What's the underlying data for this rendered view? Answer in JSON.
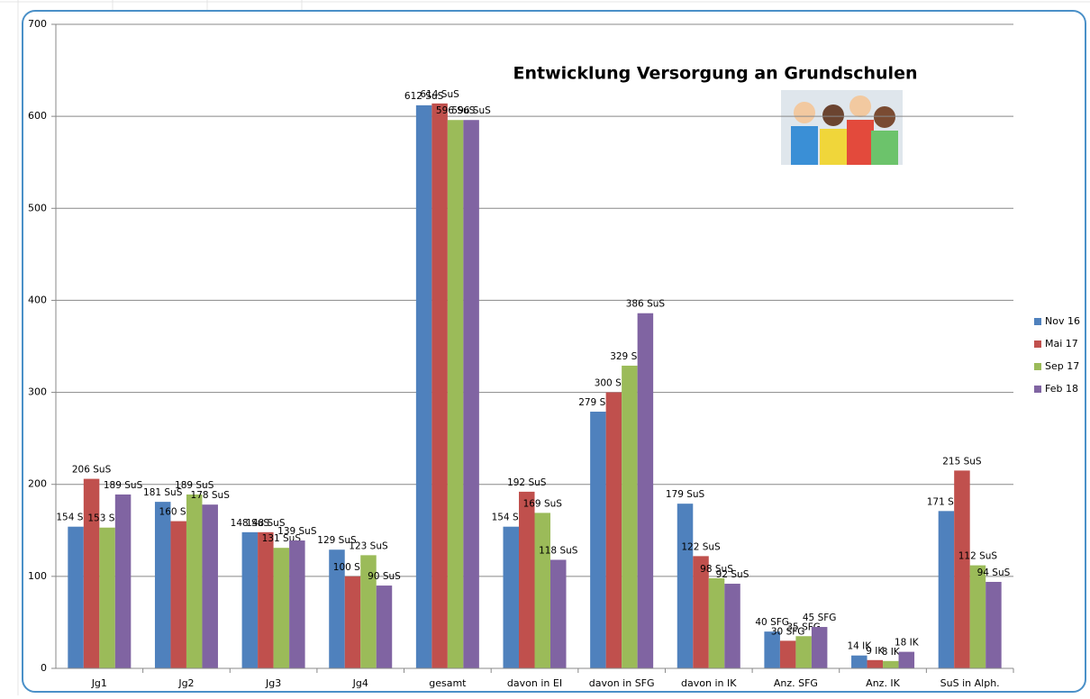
{
  "chart_data": {
    "type": "bar",
    "title": "Entwicklung Versorgung an Grundschulen",
    "categories": [
      "Jg1",
      "Jg2",
      "Jg3",
      "Jg4",
      "gesamt",
      "davon in EI",
      "davon in SFG",
      "davon in IK",
      "Anz. SFG",
      "Anz. IK",
      "SuS in Alph."
    ],
    "series": [
      {
        "name": "Nov 16",
        "color": "#4f81bd",
        "values": [
          154,
          181,
          148,
          129,
          612,
          154,
          279,
          179,
          40,
          14,
          171
        ],
        "value_labels": [
          "154 SuS",
          "181 SuS",
          "148 SuS",
          "129 SuS",
          "612 SuS",
          "154 SuS",
          "279 SuS",
          "179 SuS",
          "40 SFG",
          "14 IK",
          "171 SuS"
        ]
      },
      {
        "name": "Mai 17",
        "color": "#c0504d",
        "values": [
          206,
          160,
          148,
          100,
          614,
          192,
          300,
          122,
          30,
          9,
          215
        ],
        "value_labels": [
          "206 SuS",
          "160 SuS",
          "148 SuS",
          "100 SuS",
          "614 SuS",
          "192 SuS",
          "300 SuS",
          "122 SuS",
          "30 SFG",
          "9 IK",
          "215 SuS"
        ]
      },
      {
        "name": "Sep 17",
        "color": "#9bbb59",
        "values": [
          153,
          189,
          131,
          123,
          596,
          169,
          329,
          98,
          35,
          8,
          112
        ],
        "value_labels": [
          "153 SuS",
          "189 SuS",
          "131 SuS",
          "123 SuS",
          "596 SuS",
          "169 SuS",
          "329 SuS",
          "98 SuS",
          "35 SFG",
          "8 IK",
          "112 SuS"
        ]
      },
      {
        "name": "Feb 18",
        "color": "#8064a2",
        "values": [
          189,
          178,
          139,
          90,
          596,
          118,
          386,
          92,
          45,
          18,
          94
        ],
        "value_labels": [
          "189 SuS",
          "178 SuS",
          "139 SuS",
          "90 SuS",
          "596 SuS",
          "118 SuS",
          "386 SuS",
          "92 SuS",
          "45 SFG",
          "18 IK",
          "94 SuS"
        ]
      }
    ],
    "ylim": [
      0,
      700
    ],
    "yticks": [
      0,
      100,
      200,
      300,
      400,
      500,
      600,
      700
    ],
    "grid": true,
    "legend": "right"
  }
}
